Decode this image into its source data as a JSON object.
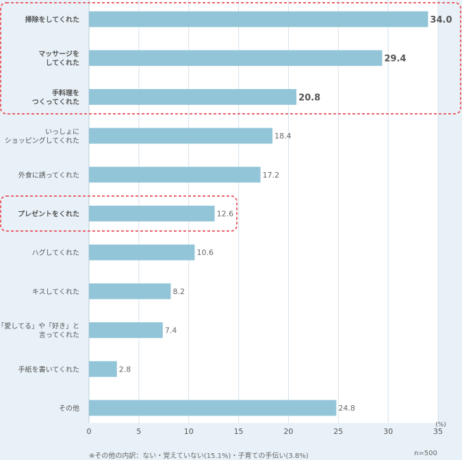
{
  "chart_data": {
    "type": "bar",
    "orientation": "horizontal",
    "categories": [
      [
        "掃除をしてくれた"
      ],
      [
        "マッサージを",
        "してくれた"
      ],
      [
        "手料理を",
        "つくってくれた"
      ],
      [
        "いっしょに",
        "ショッピングしてくれた"
      ],
      [
        "外食に誘ってくれた"
      ],
      [
        "プレゼントをくれた"
      ],
      [
        "ハグしてくれた"
      ],
      [
        "キスしてくれた"
      ],
      [
        "「愛してる」や「好き」と",
        "言ってくれた"
      ],
      [
        "手紙を書いてくれた"
      ],
      [
        "その他"
      ]
    ],
    "value_labels": [
      "34.0",
      "29.4",
      "20.8",
      "18.4",
      "17.2",
      "12.6",
      "10.6",
      "8.2",
      "7.4",
      "2.8",
      "24.8"
    ],
    "values": [
      34.0,
      29.4,
      20.8,
      18.4,
      17.2,
      12.6,
      10.6,
      8.2,
      7.4,
      2.8,
      24.8
    ],
    "emphasized": [
      true,
      true,
      true,
      false,
      false,
      true,
      false,
      false,
      false,
      false,
      false
    ],
    "xlim": [
      0,
      35
    ],
    "xticks": [
      "0",
      "5",
      "10",
      "15",
      "20",
      "25",
      "30",
      "35"
    ],
    "xunit": "(%)",
    "grid": true,
    "bar_color": "#93c5d9",
    "plot_bg": "#ffffff",
    "grid_color": "#d5e2ea",
    "highlight_color": "#e8616a"
  },
  "footnote": "※その他の内訳：ない・覚えていない(15.1%)・子育ての手伝い(3.8%)",
  "sample_size": "n=500"
}
